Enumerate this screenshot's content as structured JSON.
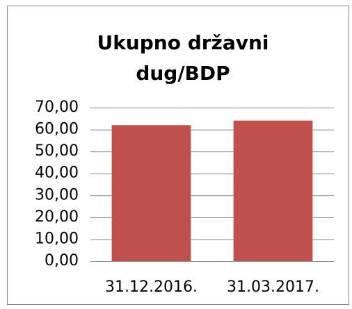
{
  "chart_data": {
    "type": "bar",
    "title": "Ukupno državni dug/BDP",
    "categories": [
      "31.12.2016.",
      "31.03.2017."
    ],
    "values": [
      62.0,
      64.1
    ],
    "color": "#c0504d",
    "ylim": [
      0,
      70
    ],
    "yticks": [
      {
        "value": 0,
        "label": "0,00"
      },
      {
        "value": 10,
        "label": "10,00"
      },
      {
        "value": 20,
        "label": "20,00"
      },
      {
        "value": 30,
        "label": "30,00"
      },
      {
        "value": 40,
        "label": "40,00"
      },
      {
        "value": 50,
        "label": "50,00"
      },
      {
        "value": 60,
        "label": "60,00"
      },
      {
        "value": 70,
        "label": "70,00"
      }
    ],
    "grid": true
  }
}
